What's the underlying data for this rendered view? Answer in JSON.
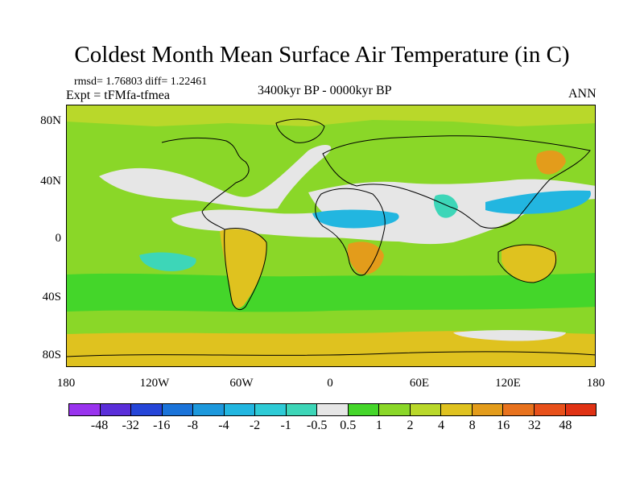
{
  "figure": {
    "title": "Coldest Month Mean Surface Air Temperature (in C)",
    "stats": "rmsd= 1.76803 diff= 1.22461",
    "experiment": "Expt = tFMfa-tfmea",
    "period": "3400kyr BP - 0000kyr BP",
    "season": "ANN"
  },
  "axes": {
    "y_ticks": [
      "80N",
      "40N",
      "0",
      "40S",
      "80S"
    ],
    "x_ticks": [
      "180",
      "120W",
      "60W",
      "0",
      "60E",
      "120E",
      "180"
    ]
  },
  "colorbar": {
    "levels": [
      "-48",
      "-32",
      "-16",
      "-8",
      "-4",
      "-2",
      "-1",
      "-0.5",
      "0.5",
      "1",
      "2",
      "4",
      "8",
      "16",
      "32",
      "48"
    ],
    "colors": [
      "#9933ee",
      "#5a2ed9",
      "#2545d8",
      "#1a73d9",
      "#1c98dc",
      "#22b6e0",
      "#2ecbd6",
      "#3dd6b8",
      "#e6e6e6",
      "#44d62a",
      "#8ad728",
      "#b9d82a",
      "#dfc21f",
      "#e39c1b",
      "#e8721d",
      "#e8501a",
      "#e03214"
    ]
  },
  "map_colors": {
    "ocean_base": "#8ad728",
    "neutral": "#e6e6e6",
    "cool": "#3dd6b8",
    "cold": "#22b6e0",
    "warm": "#b9d82a",
    "hot": "#dfc21f",
    "hotter": "#e39c1b",
    "green": "#44d62a"
  }
}
